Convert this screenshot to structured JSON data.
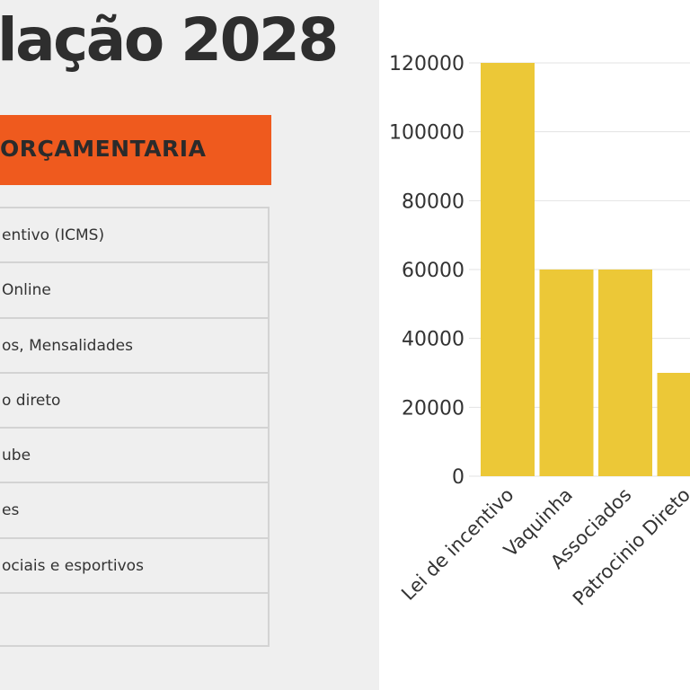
{
  "left": {
    "title": "lação 2028",
    "section_banner": "ORÇAMENTARIA",
    "rows": [
      "entivo (ICMS)",
      "Online",
      "os, Mensalidades",
      "o direto",
      "ube",
      "es",
      "ociais e esportivos",
      ""
    ]
  },
  "colors": {
    "bar": "#ecc837",
    "banner": "#ef5a1e",
    "grid": "#e3e3e3",
    "left_background": "#efefef",
    "right_background": "#ffffff"
  },
  "chart_data": {
    "type": "bar",
    "categories": [
      "Lei de incentivo",
      "Vaquinha",
      "Associados",
      "Patrocinio Direto"
    ],
    "values": [
      120000,
      60000,
      60000,
      30000
    ],
    "title": "",
    "xlabel": "",
    "ylabel": "",
    "ylim": [
      0,
      120000
    ],
    "yticks": [
      0,
      20000,
      40000,
      60000,
      80000,
      100000,
      120000
    ],
    "grid": true,
    "legend": "none"
  }
}
